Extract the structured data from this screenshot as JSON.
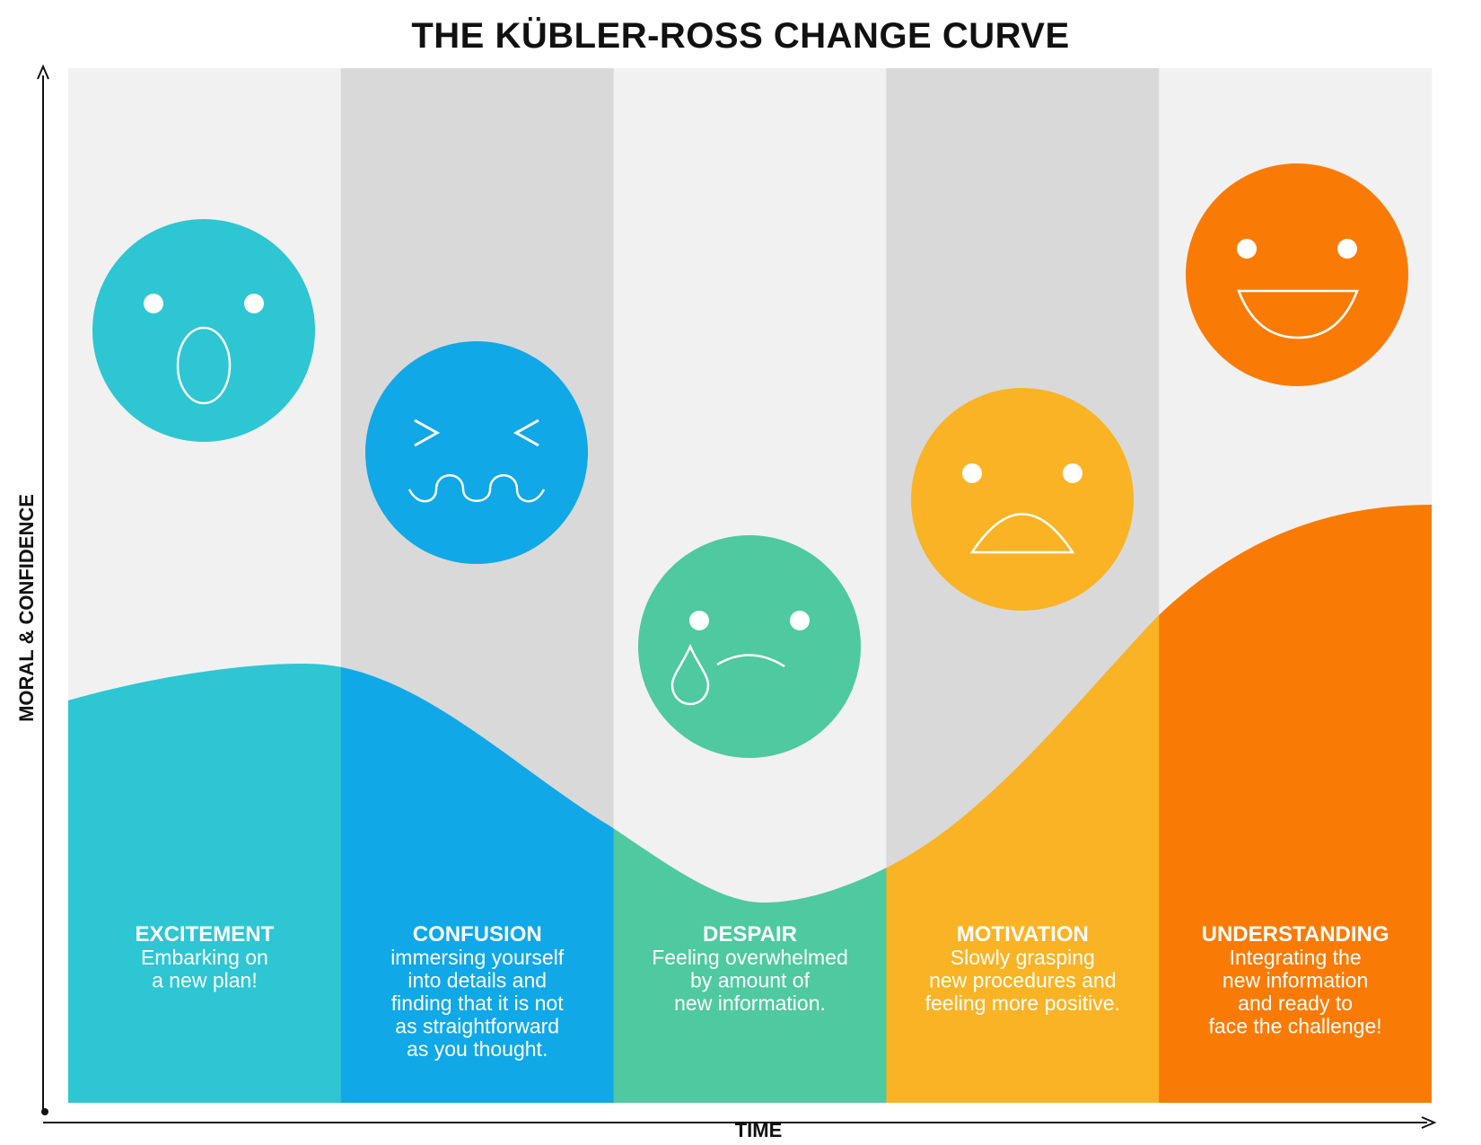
{
  "title": "THE KÜBLER-ROSS CHANGE CURVE",
  "y_axis_label": "MORAL & CONFIDENCE",
  "x_axis_label": "TIME",
  "colors": {
    "band_light": "#f1f1f1",
    "band_dark": "#d9d9d9",
    "face_line": "#ffffff",
    "axis": "#111111"
  },
  "stages": [
    {
      "name": "EXCITEMENT",
      "lines": [
        "Embarking on",
        "a new plan!"
      ],
      "color": "#2ec6d3",
      "face": "surprised",
      "face_icon": "surprised-face-icon"
    },
    {
      "name": "CONFUSION",
      "lines": [
        "immersing yourself",
        "into details and",
        "finding that it is not",
        "as straightforward",
        "as you thought."
      ],
      "color": "#10a8e7",
      "face": "confused",
      "face_icon": "confused-face-icon"
    },
    {
      "name": "DESPAIR",
      "lines": [
        "Feeling overwhelmed",
        "by amount of",
        "new information."
      ],
      "color": "#4ec9a0",
      "face": "crying",
      "face_icon": "crying-face-icon"
    },
    {
      "name": "MOTIVATION",
      "lines": [
        "Slowly grasping",
        "new procedures and",
        "feeling more positive."
      ],
      "color": "#f9b324",
      "face": "sad",
      "face_icon": "sad-face-icon"
    },
    {
      "name": "UNDERSTANDING",
      "lines": [
        "Integrating the",
        "new information",
        "and ready to",
        "face the challenge!"
      ],
      "color": "#f97b06",
      "face": "happy",
      "face_icon": "happy-face-icon"
    }
  ]
}
